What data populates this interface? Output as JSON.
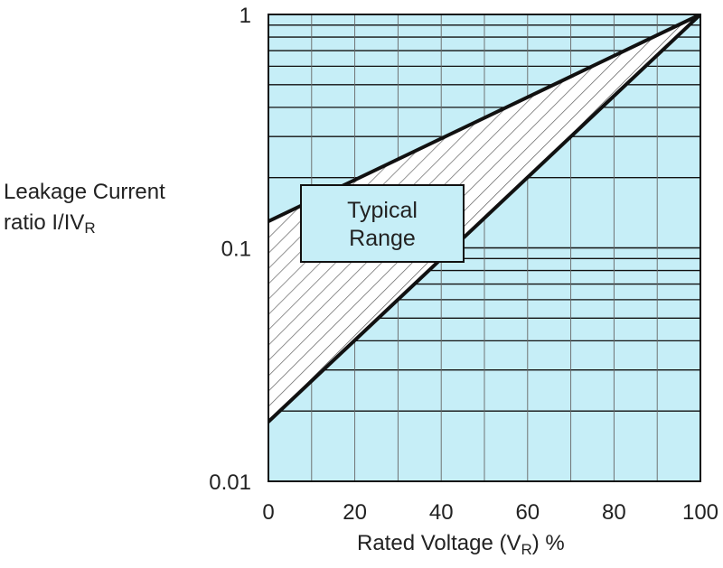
{
  "chart_data": {
    "type": "area",
    "title": "",
    "xlabel": {
      "prefix": "Rated Voltage (V",
      "subscript": "R",
      "suffix": ") %"
    },
    "ylabel": {
      "line1": "Leakage Current",
      "line2_prefix": "ratio I/IV",
      "line2_subscript": "R"
    },
    "x_ticks": [
      "0",
      "20",
      "40",
      "60",
      "80",
      "100"
    ],
    "y_ticks": [
      "0.01",
      "0.1",
      "1"
    ],
    "xlim": [
      0,
      100
    ],
    "ylim": [
      0.01,
      1
    ],
    "y_scale": "log",
    "grid": true,
    "series": [
      {
        "x": [
          0,
          100
        ],
        "y": [
          0.13,
          1
        ]
      },
      {
        "x": [
          0,
          100
        ],
        "y": [
          0.018,
          1
        ]
      }
    ],
    "annotation": {
      "line1": "Typical",
      "line2": "Range"
    },
    "colors": {
      "plot_background": "#c6eef7",
      "grid": "#111111",
      "boundary": "#111111",
      "hatch": "#555555"
    }
  }
}
